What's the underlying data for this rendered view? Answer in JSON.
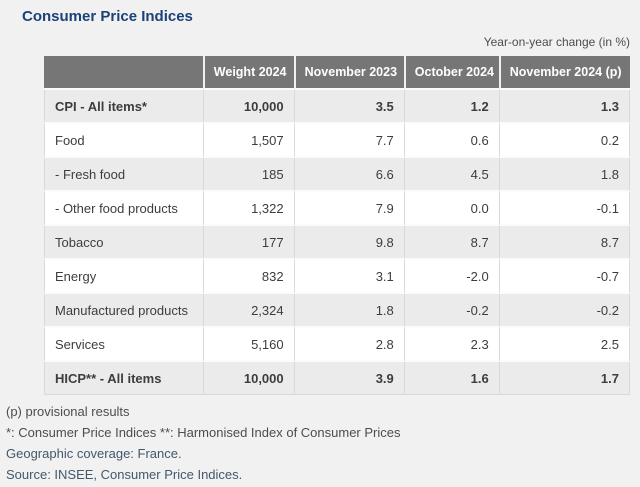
{
  "page": {
    "title": "Consumer Price Indices",
    "subtitle": "Year-on-year change (in %)"
  },
  "chart_data": {
    "type": "table",
    "title": "Consumer Price Indices",
    "subtitle": "Year-on-year change (in %)",
    "unit": "percent",
    "columns": [
      "",
      "Weight 2024",
      "November 2023",
      "October 2024",
      "November 2024 (p)"
    ],
    "rows": [
      {
        "label": "CPI - All items*",
        "bold": true,
        "values": [
          "10,000",
          "3.5",
          "1.2",
          "1.3"
        ]
      },
      {
        "label": "Food",
        "bold": false,
        "values": [
          "1,507",
          "7.7",
          "0.6",
          "0.2"
        ]
      },
      {
        "label": "- Fresh food",
        "bold": false,
        "values": [
          "185",
          "6.6",
          "4.5",
          "1.8"
        ]
      },
      {
        "label": "- Other food products",
        "bold": false,
        "values": [
          "1,322",
          "7.9",
          "0.0",
          "-0.1"
        ]
      },
      {
        "label": "Tobacco",
        "bold": false,
        "values": [
          "177",
          "9.8",
          "8.7",
          "8.7"
        ]
      },
      {
        "label": "Energy",
        "bold": false,
        "values": [
          "832",
          "3.1",
          "-2.0",
          "-0.7"
        ]
      },
      {
        "label": "Manufactured products",
        "bold": false,
        "values": [
          "2,324",
          "1.8",
          "-0.2",
          "-0.2"
        ]
      },
      {
        "label": "Services",
        "bold": false,
        "values": [
          "5,160",
          "2.8",
          "2.3",
          "2.5"
        ]
      },
      {
        "label": "HICP** - All items",
        "bold": true,
        "values": [
          "10,000",
          "3.9",
          "1.6",
          "1.7"
        ]
      }
    ]
  },
  "footnotes": [
    {
      "text": "(p) provisional results",
      "style": "gray"
    },
    {
      "text": "*: Consumer Price Indices **: Harmonised Index of Consumer Prices",
      "style": "gray"
    },
    {
      "text": "Geographic coverage: France.",
      "style": "blue"
    },
    {
      "text": "Source: INSEE, Consumer Price Indices.",
      "style": "blue"
    }
  ],
  "colors": {
    "page_bg": "#f1f1f1",
    "title_color": "#1b4178",
    "header_bg": "#767676",
    "row_alt": "#ebebeb",
    "row_sep": "#fbfbfb",
    "border_color": "#d9d9d9",
    "body_text": "#3d3d3d",
    "muted_text": "#4d4d4d",
    "footnote_blue": "#42586c"
  }
}
